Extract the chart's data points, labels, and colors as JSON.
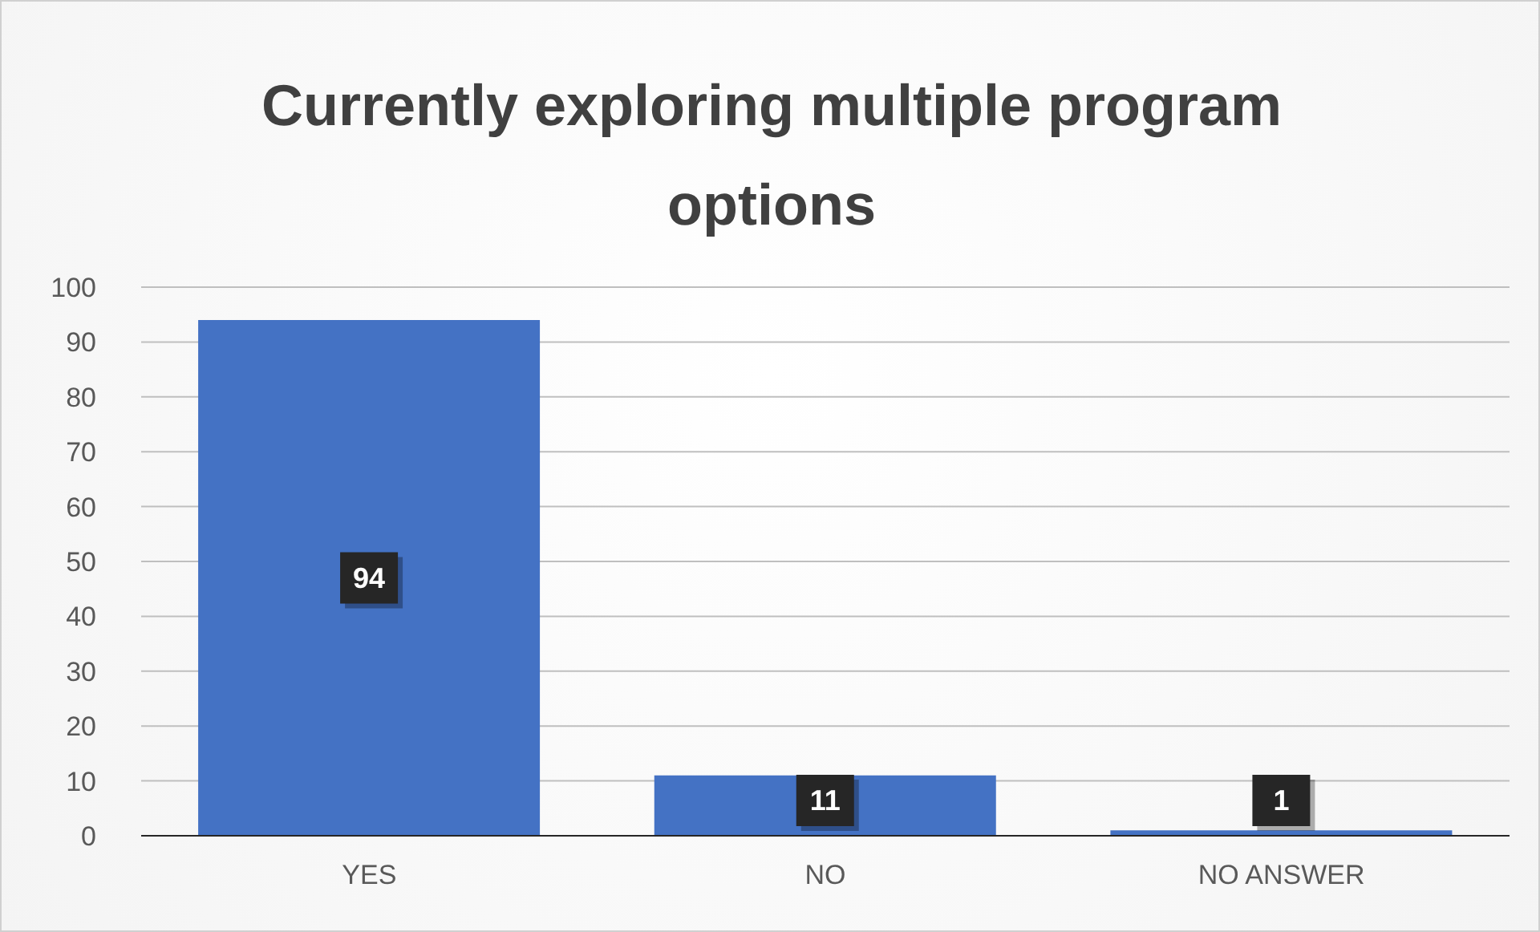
{
  "chart_data": {
    "type": "bar",
    "title": "Currently exploring multiple program options",
    "categories": [
      "YES",
      "NO",
      "NO ANSWER"
    ],
    "values": [
      94,
      11,
      1
    ],
    "color": "#4472c4",
    "ylim": [
      0,
      100
    ],
    "yticks": [
      0,
      10,
      20,
      30,
      40,
      50,
      60,
      70,
      80,
      90,
      100
    ],
    "grid": "y",
    "data_labels": true
  }
}
